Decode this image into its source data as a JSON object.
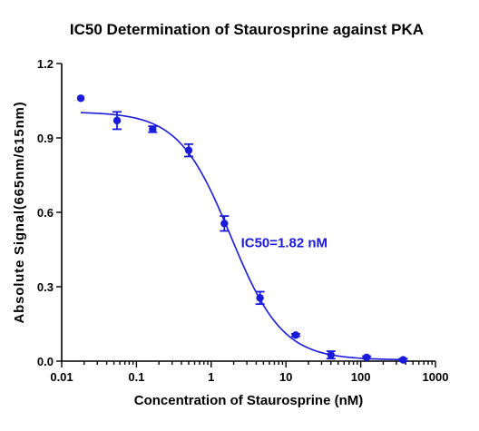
{
  "chart_data": {
    "type": "scatter",
    "title": "IC50 Determination of Staurosprine against PKA",
    "xlabel": "Concentration of Staurosprine (nM)",
    "ylabel": "Absolute Signal(665nm/615nm)",
    "x_scale": "log",
    "xlim": [
      0.01,
      1000
    ],
    "ylim": [
      0.0,
      1.2
    ],
    "x_ticks": [
      0.01,
      0.1,
      1,
      10,
      100,
      1000
    ],
    "x_tick_labels": [
      "0.01",
      "0.1",
      "1",
      "10",
      "100",
      "1000"
    ],
    "y_ticks": [
      0.0,
      0.3,
      0.6,
      0.9,
      1.2
    ],
    "y_tick_labels": [
      "0.0",
      "0.3",
      "0.6",
      "0.9",
      "1.2"
    ],
    "grid": false,
    "legend": "none",
    "color": "#1a1adb",
    "series": [
      {
        "points": [
          {
            "x": 0.018,
            "y": 1.06,
            "err": 0.0
          },
          {
            "x": 0.055,
            "y": 0.97,
            "err": 0.035
          },
          {
            "x": 0.165,
            "y": 0.935,
            "err": 0.012
          },
          {
            "x": 0.5,
            "y": 0.85,
            "err": 0.025
          },
          {
            "x": 1.5,
            "y": 0.555,
            "err": 0.03
          },
          {
            "x": 4.5,
            "y": 0.255,
            "err": 0.025
          },
          {
            "x": 13.5,
            "y": 0.105,
            "err": 0.005
          },
          {
            "x": 40,
            "y": 0.025,
            "err": 0.015
          },
          {
            "x": 120,
            "y": 0.015,
            "err": 0.005
          },
          {
            "x": 370,
            "y": 0.005,
            "err": 0.005
          }
        ]
      }
    ],
    "fit": {
      "model": "4PL",
      "top": 1.005,
      "bottom": 0.005,
      "ic50": 1.82,
      "hill": 1.25,
      "x_range": [
        0.018,
        370
      ]
    },
    "annotations": [
      {
        "text": "IC50=1.82 nM",
        "x": 2.5,
        "y": 0.46
      }
    ]
  }
}
